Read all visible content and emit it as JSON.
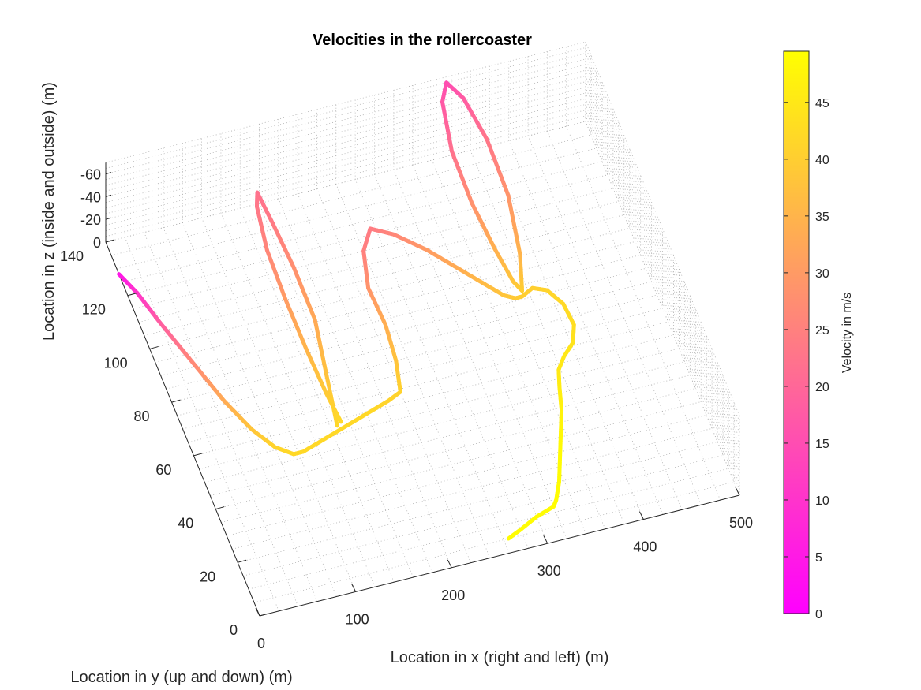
{
  "chart_data": {
    "type": "line",
    "title": "Velocities in the rollercoaster",
    "xlabel": "Location in x (right and left) (m)",
    "ylabel": "Location in y (up and down) (m)",
    "zlabel": "Location in z (inside and outside) (m)",
    "xlim": [
      0,
      500
    ],
    "ylim": [
      0,
      140
    ],
    "zlim": [
      -70,
      0
    ],
    "x_ticks": [
      "0",
      "100",
      "200",
      "300",
      "400",
      "500"
    ],
    "y_ticks": [
      "0",
      "20",
      "40",
      "60",
      "80",
      "100",
      "120",
      "140"
    ],
    "z_ticks": [
      "0",
      "-20",
      "-40",
      "-60"
    ],
    "grid": true,
    "colorbar": {
      "label": "Velocity in m/s",
      "range": [
        0,
        49.5
      ],
      "ticks": [
        "0",
        "5",
        "10",
        "15",
        "20",
        "25",
        "30",
        "35",
        "40",
        "45"
      ],
      "colormap": "spring",
      "low_color": "#ff00ff",
      "high_color": "#ffff00"
    },
    "series": [
      {
        "x": [
          0,
          10,
          20,
          35,
          50,
          65,
          80,
          95,
          105
        ],
        "y": [
          128,
          120,
          108,
          92,
          76,
          64,
          56,
          52,
          52
        ],
        "z": [
          0,
          0,
          0,
          0,
          0,
          0,
          0,
          0,
          0
        ],
        "velocity": [
          4,
          10,
          18,
          26,
          33,
          38,
          41,
          42,
          42
        ]
      },
      {
        "x": [
          105,
          125,
          145,
          165,
          185,
          205,
          220
        ],
        "y": [
          52,
          54,
          56,
          58,
          60,
          62,
          64
        ],
        "z": [
          0,
          0,
          0,
          0,
          0,
          0,
          0
        ],
        "velocity": [
          42,
          42,
          42,
          42,
          42,
          41,
          41
        ]
      },
      {
        "x": [
          145,
          150,
          155,
          150,
          142,
          135,
          130,
          128,
          132,
          138,
          145,
          150
        ],
        "y": [
          56,
          70,
          85,
          100,
          112,
          120,
          116,
          105,
          92,
          78,
          66,
          57
        ],
        "z": [
          -5,
          -15,
          -28,
          -40,
          -52,
          -62,
          -60,
          -48,
          -35,
          -22,
          -10,
          -5
        ],
        "velocity": [
          42,
          38,
          33,
          28,
          24,
          22,
          23,
          26,
          30,
          35,
          39,
          42
        ]
      },
      {
        "x": [
          220,
          228,
          232,
          230,
          240,
          255,
          275,
          300,
          320,
          340,
          355,
          365,
          372
        ],
        "y": [
          64,
          75,
          88,
          102,
          115,
          122,
          118,
          110,
          102,
          94,
          88,
          86,
          86
        ],
        "z": [
          0,
          0,
          0,
          0,
          0,
          0,
          0,
          0,
          0,
          0,
          0,
          0,
          0
        ],
        "velocity": [
          41,
          38,
          34,
          29,
          25,
          24,
          26,
          30,
          33,
          36,
          38,
          39,
          40
        ]
      },
      {
        "x": [
          372,
          380,
          385,
          380,
          368,
          355,
          345,
          340,
          345,
          355,
          365,
          372
        ],
        "y": [
          86,
          95,
          110,
          125,
          136,
          140,
          135,
          122,
          108,
          96,
          88,
          86
        ],
        "z": [
          -5,
          -15,
          -30,
          -45,
          -58,
          -65,
          -62,
          -50,
          -36,
          -22,
          -10,
          -5
        ],
        "velocity": [
          40,
          35,
          29,
          23,
          18,
          15,
          17,
          22,
          28,
          34,
          38,
          40
        ]
      },
      {
        "x": [
          372,
          385,
          398,
          408,
          410,
          402,
          388,
          378,
          372,
          365,
          355,
          345,
          335,
          325,
          320
        ],
        "y": [
          86,
          88,
          86,
          80,
          72,
          66,
          62,
          58,
          52,
          44,
          36,
          28,
          20,
          14,
          12
        ],
        "z": [
          0,
          0,
          0,
          0,
          0,
          0,
          0,
          0,
          0,
          0,
          0,
          0,
          0,
          0,
          0
        ],
        "velocity": [
          40,
          40,
          41,
          42,
          43,
          44,
          45,
          45,
          46,
          47,
          48,
          49,
          49,
          49,
          49
        ]
      },
      {
        "x": [
          320,
          300,
          280,
          265
        ],
        "y": [
          12,
          10,
          7,
          5
        ],
        "z": [
          0,
          0,
          0,
          0
        ],
        "velocity": [
          49,
          49,
          49,
          49
        ]
      }
    ]
  }
}
